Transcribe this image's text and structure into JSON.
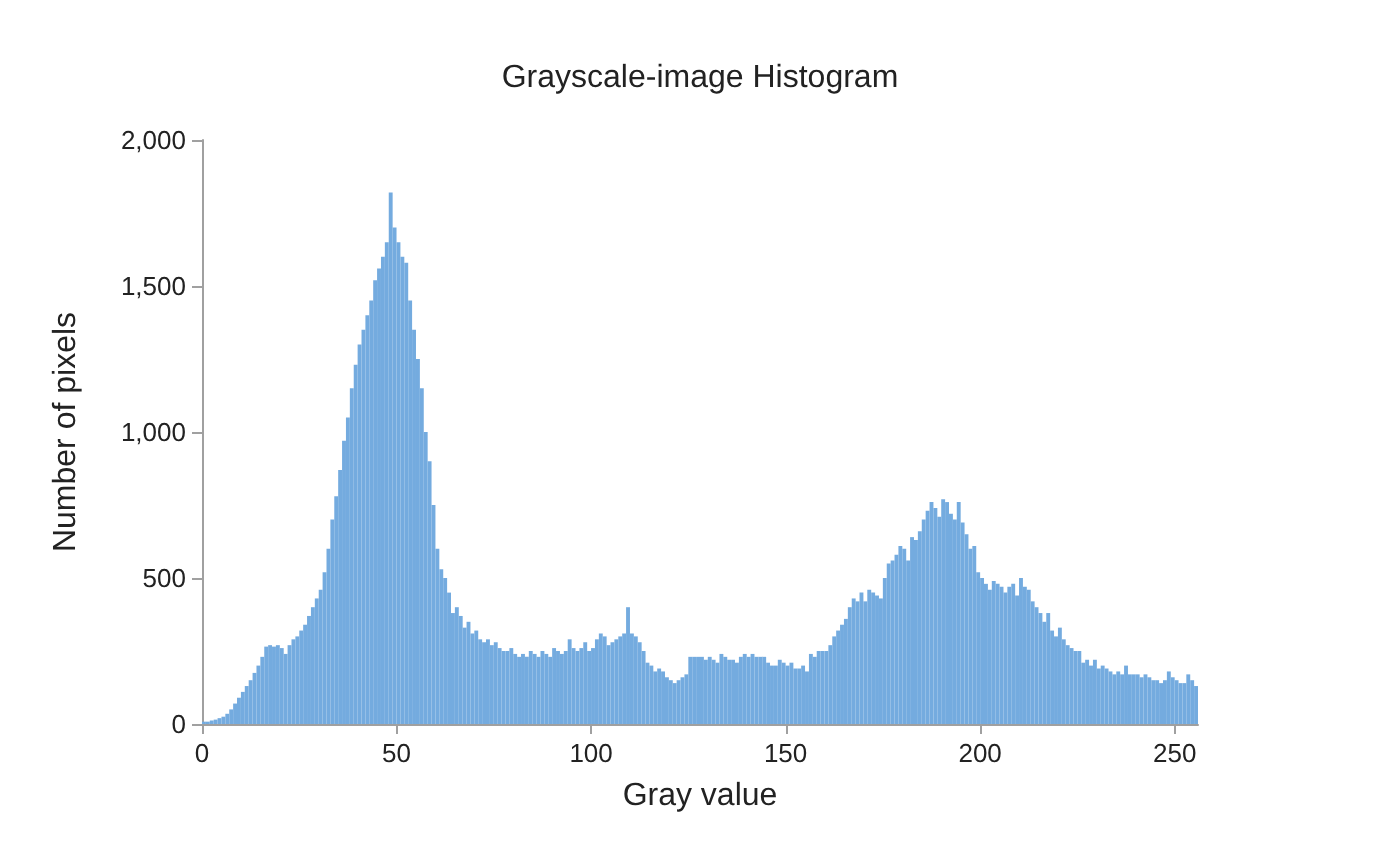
{
  "chart_data": {
    "type": "histogram",
    "title": "Grayscale-image Histogram",
    "xlabel": "Gray value",
    "ylabel": "Number of pixels",
    "color": "#74abdf",
    "bins": [
      0,
      1,
      2,
      3,
      4,
      5,
      6,
      7,
      8,
      9,
      10,
      11,
      12,
      13,
      14,
      15,
      16,
      17,
      18,
      19,
      20,
      21,
      22,
      23,
      24,
      25,
      26,
      27,
      28,
      29,
      30,
      31,
      32,
      33,
      34,
      35,
      36,
      37,
      38,
      39,
      40,
      41,
      42,
      43,
      44,
      45,
      46,
      47,
      48,
      49,
      50,
      51,
      52,
      53,
      54,
      55,
      56,
      57,
      58,
      59,
      60,
      61,
      62,
      63,
      64,
      65,
      66,
      67,
      68,
      69,
      70,
      71,
      72,
      73,
      74,
      75,
      76,
      77,
      78,
      79,
      80,
      81,
      82,
      83,
      84,
      85,
      86,
      87,
      88,
      89,
      90,
      91,
      92,
      93,
      94,
      95,
      96,
      97,
      98,
      99,
      100,
      101,
      102,
      103,
      104,
      105,
      106,
      107,
      108,
      109,
      110,
      111,
      112,
      113,
      114,
      115,
      116,
      117,
      118,
      119,
      120,
      121,
      122,
      123,
      124,
      125,
      126,
      127,
      128,
      129,
      130,
      131,
      132,
      133,
      134,
      135,
      136,
      137,
      138,
      139,
      140,
      141,
      142,
      143,
      144,
      145,
      146,
      147,
      148,
      149,
      150,
      151,
      152,
      153,
      154,
      155,
      156,
      157,
      158,
      159,
      160,
      161,
      162,
      163,
      164,
      165,
      166,
      167,
      168,
      169,
      170,
      171,
      172,
      173,
      174,
      175,
      176,
      177,
      178,
      179,
      180,
      181,
      182,
      183,
      184,
      185,
      186,
      187,
      188,
      189,
      190,
      191,
      192,
      193,
      194,
      195,
      196,
      197,
      198,
      199,
      200,
      201,
      202,
      203,
      204,
      205,
      206,
      207,
      208,
      209,
      210,
      211,
      212,
      213,
      214,
      215,
      216,
      217,
      218,
      219,
      220,
      221,
      222,
      223,
      224,
      225,
      226,
      227,
      228,
      229,
      230,
      231,
      232,
      233,
      234,
      235,
      236,
      237,
      238,
      239,
      240,
      241,
      242,
      243,
      244,
      245,
      246,
      247,
      248,
      249,
      250,
      251,
      252,
      253,
      254,
      255,
      256
    ],
    "values": [
      8,
      8,
      12,
      15,
      20,
      25,
      35,
      50,
      70,
      90,
      110,
      130,
      150,
      175,
      200,
      230,
      265,
      270,
      265,
      270,
      260,
      240,
      270,
      290,
      300,
      320,
      340,
      370,
      400,
      430,
      460,
      520,
      600,
      700,
      780,
      870,
      970,
      1050,
      1150,
      1230,
      1300,
      1350,
      1400,
      1450,
      1520,
      1560,
      1600,
      1650,
      1820,
      1700,
      1650,
      1600,
      1580,
      1450,
      1350,
      1250,
      1150,
      1000,
      900,
      750,
      600,
      530,
      500,
      450,
      380,
      400,
      370,
      330,
      350,
      310,
      320,
      290,
      280,
      290,
      270,
      280,
      260,
      250,
      250,
      260,
      240,
      230,
      240,
      230,
      250,
      240,
      230,
      250,
      240,
      230,
      260,
      250,
      240,
      250,
      290,
      260,
      250,
      260,
      280,
      250,
      260,
      290,
      310,
      300,
      270,
      280,
      290,
      300,
      310,
      400,
      310,
      300,
      280,
      250,
      210,
      200,
      180,
      190,
      180,
      160,
      150,
      140,
      150,
      160,
      170,
      230,
      230,
      230,
      230,
      220,
      230,
      220,
      210,
      240,
      230,
      220,
      220,
      210,
      230,
      240,
      230,
      240,
      230,
      230,
      230,
      210,
      200,
      200,
      220,
      210,
      200,
      210,
      190,
      190,
      200,
      180,
      240,
      230,
      250,
      250,
      250,
      270,
      300,
      320,
      340,
      360,
      400,
      430,
      420,
      450,
      420,
      460,
      450,
      440,
      430,
      500,
      550,
      560,
      580,
      610,
      600,
      560,
      640,
      630,
      660,
      700,
      730,
      760,
      740,
      710,
      770,
      760,
      720,
      700,
      760,
      690,
      650,
      600,
      610,
      520,
      500,
      480,
      460,
      490,
      480,
      470,
      450,
      470,
      480,
      440,
      500,
      470,
      460,
      420,
      400,
      380,
      350,
      380,
      320,
      300,
      330,
      290,
      270,
      260,
      250,
      250,
      210,
      220,
      200,
      220,
      190,
      200,
      190,
      180,
      170,
      180,
      170,
      200,
      170,
      170,
      170,
      160,
      170,
      160,
      150,
      150,
      140,
      150,
      180,
      160,
      150,
      140,
      140,
      170,
      150,
      130
    ],
    "xlim": [
      0,
      256
    ],
    "xticks": [
      0,
      50,
      100,
      150,
      200,
      250
    ],
    "ylim": [
      0,
      2000
    ],
    "yticks": [
      0,
      500,
      {
        "value": 1000,
        "label": "1,000"
      },
      {
        "value": 1500,
        "label": "1,500"
      },
      {
        "value": 2000,
        "label": "2,000"
      }
    ],
    "grid": false
  }
}
